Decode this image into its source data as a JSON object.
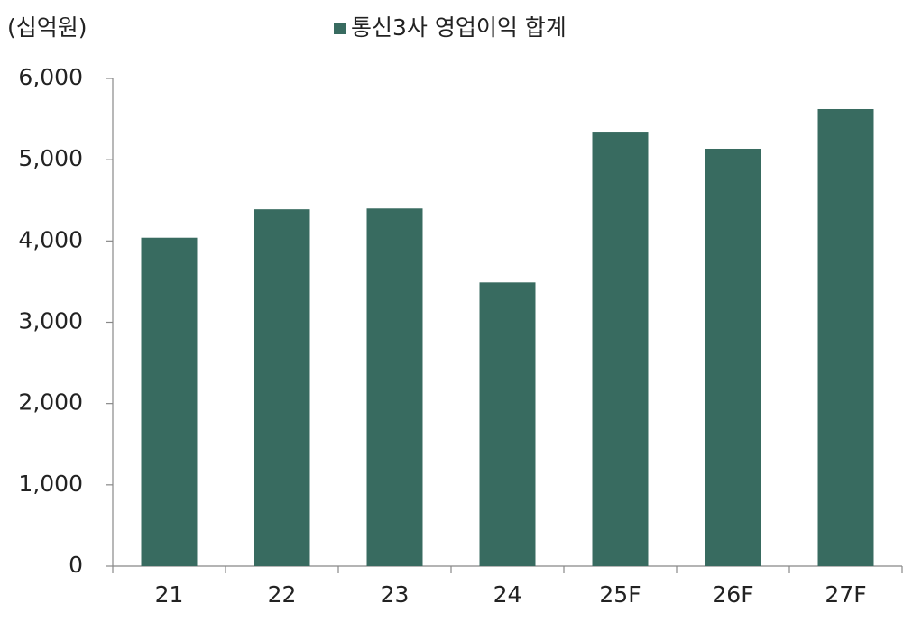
{
  "chart_data": {
    "type": "bar",
    "unit_label": "(십억원)",
    "categories": [
      "21",
      "22",
      "23",
      "24",
      "25F",
      "26F",
      "27F"
    ],
    "series": [
      {
        "name": "통신3사 영업이익 합계",
        "color": "#386b60",
        "values": [
          4040,
          4390,
          4400,
          3490,
          5345,
          5135,
          5623
        ]
      }
    ],
    "ylim": [
      0,
      6000
    ],
    "yticks": [
      0,
      {
        "value": 1000,
        "label": "1,000"
      },
      {
        "value": 2000,
        "label": "2,000"
      },
      {
        "value": 3000,
        "label": "3,000"
      },
      {
        "value": 4000,
        "label": "4,000"
      },
      {
        "value": 5000,
        "label": "5,000"
      },
      {
        "value": 6000,
        "label": "6,000"
      }
    ],
    "grid": false
  }
}
